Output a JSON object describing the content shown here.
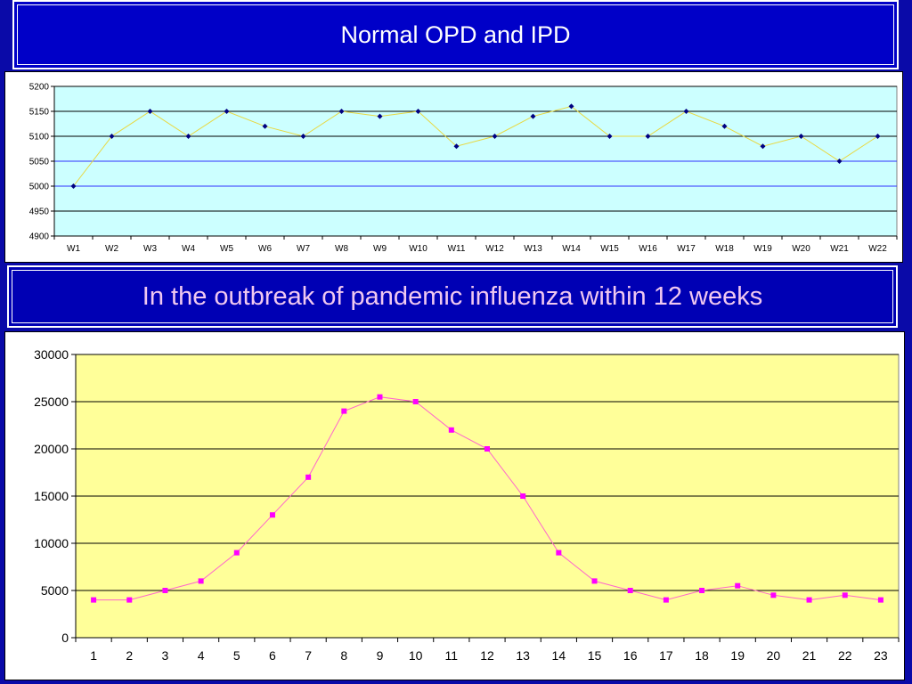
{
  "banner1": {
    "title": "Normal OPD and IPD"
  },
  "banner2": {
    "title": "In the outbreak of pandemic influenza within 12 weeks"
  },
  "colors": {
    "chart1_plot_bg": "#ccffff",
    "chart1_line": "#e8d840",
    "chart1_marker": "#000080",
    "chart2_plot_bg": "#ffff99",
    "chart2_line": "#ff66cc",
    "chart2_marker": "#ff00ff"
  },
  "chart_data": [
    {
      "type": "line",
      "categories": [
        "W1",
        "W2",
        "W3",
        "W4",
        "W5",
        "W6",
        "W7",
        "W8",
        "W9",
        "W10",
        "W11",
        "W12",
        "W13",
        "W14",
        "W15",
        "W16",
        "W17",
        "W18",
        "W19",
        "W20",
        "W21",
        "W22"
      ],
      "values": [
        5000,
        5100,
        5150,
        5100,
        5150,
        5120,
        5100,
        5150,
        5140,
        5150,
        5080,
        5100,
        5140,
        5160,
        5100,
        5100,
        5150,
        5120,
        5080,
        5100,
        5050,
        5100
      ],
      "ylim": [
        4900,
        5200
      ],
      "yticks": [
        4900,
        4950,
        5000,
        5050,
        5100,
        5150,
        5200
      ],
      "grid": true
    },
    {
      "type": "line",
      "categories": [
        "1",
        "2",
        "3",
        "4",
        "5",
        "6",
        "7",
        "8",
        "9",
        "10",
        "11",
        "12",
        "13",
        "14",
        "15",
        "16",
        "17",
        "18",
        "19",
        "20",
        "21",
        "22",
        "23"
      ],
      "values": [
        4000,
        4000,
        5000,
        6000,
        9000,
        13000,
        17000,
        24000,
        25500,
        25000,
        22000,
        20000,
        15000,
        9000,
        6000,
        5000,
        4000,
        5000,
        5500,
        4500,
        4000,
        4500,
        4000
      ],
      "ylim": [
        0,
        30000
      ],
      "yticks": [
        0,
        5000,
        10000,
        15000,
        20000,
        25000,
        30000
      ],
      "grid": true
    }
  ]
}
